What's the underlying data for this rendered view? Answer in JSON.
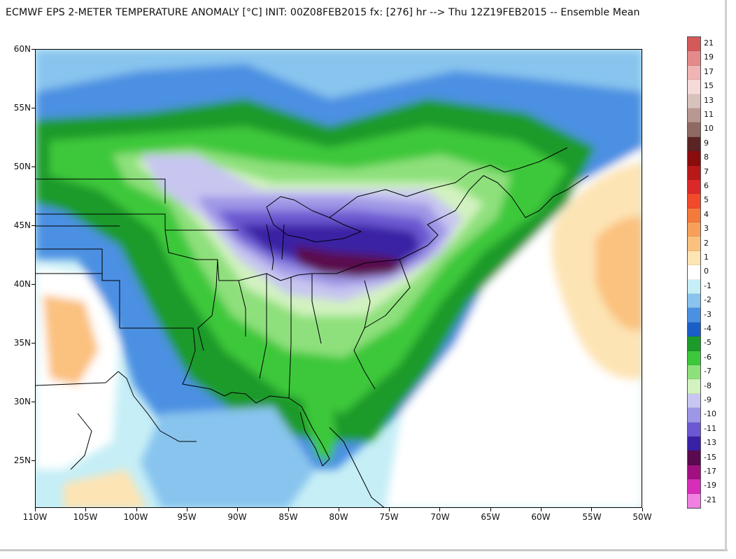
{
  "title": "ECMWF EPS 2-METER TEMPERATURE ANOMALY [°C] INIT: 00Z08FEB2015 fx: [276] hr --> Thu 12Z19FEB2015 -- Ensemble Mean",
  "map": {
    "lat_labels": [
      "60N",
      "55N",
      "50N",
      "45N",
      "40N",
      "35N",
      "30N",
      "25N"
    ],
    "lon_labels": [
      "110W",
      "105W",
      "100W",
      "95W",
      "90W",
      "85W",
      "80W",
      "75W",
      "70W",
      "65W",
      "60W",
      "55W",
      "50W"
    ]
  },
  "legend": {
    "items": [
      {
        "label": "21",
        "color": "#d45a5a"
      },
      {
        "label": "19",
        "color": "#e48a8a"
      },
      {
        "label": "17",
        "color": "#f0b4b4"
      },
      {
        "label": "15",
        "color": "#f6dada"
      },
      {
        "label": "13",
        "color": "#d8c2bc"
      },
      {
        "label": "11",
        "color": "#b89890"
      },
      {
        "label": "10",
        "color": "#8e6a62"
      },
      {
        "label": "9",
        "color": "#5a2424"
      },
      {
        "label": "8",
        "color": "#8a0c0c"
      },
      {
        "label": "7",
        "color": "#b81818"
      },
      {
        "label": "6",
        "color": "#dc2828"
      },
      {
        "label": "5",
        "color": "#f24a2a"
      },
      {
        "label": "4",
        "color": "#f47a3c"
      },
      {
        "label": "3",
        "color": "#f8a05a"
      },
      {
        "label": "2",
        "color": "#fbc17e"
      },
      {
        "label": "1",
        "color": "#fde4b4"
      },
      {
        "label": "0",
        "color": "#ffffff"
      },
      {
        "label": "-1",
        "color": "#c6eef6"
      },
      {
        "label": "-2",
        "color": "#88c4ee"
      },
      {
        "label": "-3",
        "color": "#4c90e2"
      },
      {
        "label": "-4",
        "color": "#1a5ec8"
      },
      {
        "label": "-5",
        "color": "#1c9a2a"
      },
      {
        "label": "-6",
        "color": "#3cc83a"
      },
      {
        "label": "-7",
        "color": "#8ee07c"
      },
      {
        "label": "-8",
        "color": "#d2f2c0"
      },
      {
        "label": "-9",
        "color": "#c8c6f0"
      },
      {
        "label": "-10",
        "color": "#9e96e6"
      },
      {
        "label": "-11",
        "color": "#6c58d2"
      },
      {
        "label": "-13",
        "color": "#3a20a4"
      },
      {
        "label": "-15",
        "color": "#5a0a4e"
      },
      {
        "label": "-17",
        "color": "#a01080"
      },
      {
        "label": "-19",
        "color": "#d62eb8"
      },
      {
        "label": "-21",
        "color": "#f080e2"
      }
    ]
  }
}
